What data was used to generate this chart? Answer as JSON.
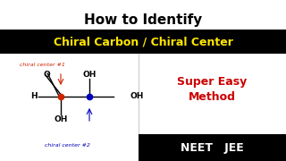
{
  "title_text": "How to Identify",
  "banner_text": "Chiral Carbon / Chiral Center",
  "banner_bg": "#000000",
  "banner_fg": "#FFE600",
  "bg_color": "#ffffff",
  "neet_jee_bg": "#000000",
  "super_easy_text": "Super Easy\nMethod",
  "super_easy_color": "#cc0000",
  "neet_jee_text": "NEET   JEE",
  "neet_jee_color": "#ffffff",
  "chiral1_label": "chiral center #1",
  "chiral1_color": "#cc2200",
  "chiral2_label": "chiral center #2",
  "chiral2_color": "#0000bb",
  "title_fontsize": 11,
  "banner_fontsize": 9,
  "super_easy_fontsize": 9,
  "neet_jee_fontsize": 9,
  "mol_fontsize": 6.5,
  "label_fontsize": 4.5
}
